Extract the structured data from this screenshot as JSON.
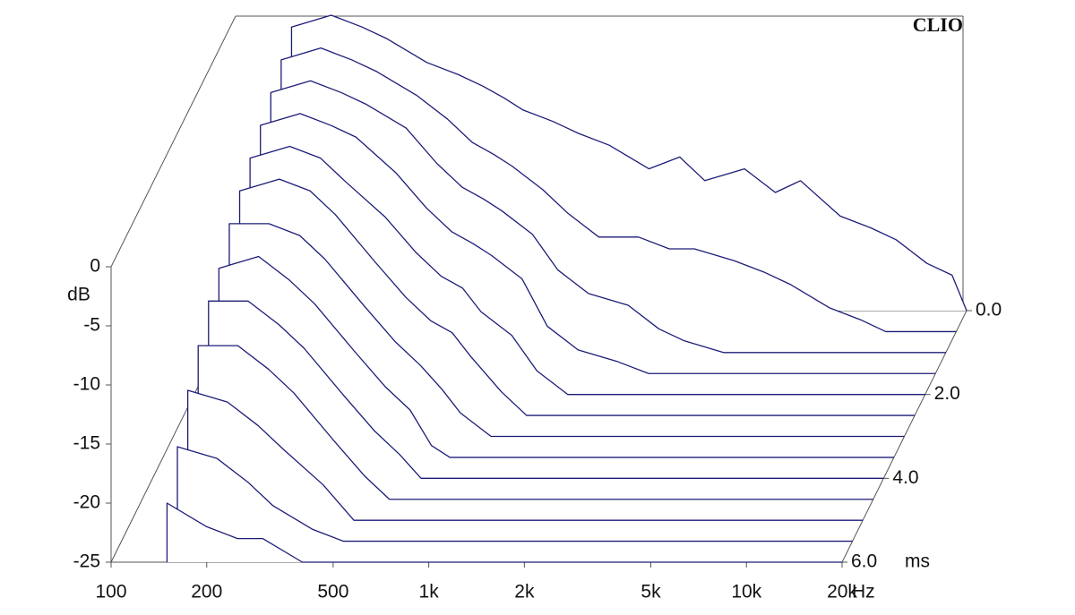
{
  "chart_data": {
    "type": "waterfall",
    "brand": "CLIO",
    "y_label": "dB",
    "x_unit": "Hz",
    "z_unit": "ms",
    "color": "#1c1c78",
    "x": [
      150,
      200,
      250,
      300,
      400,
      500,
      600,
      700,
      800,
      1000,
      1200,
      1500,
      2000,
      2500,
      3000,
      4000,
      5000,
      6000,
      8000,
      10000,
      12000,
      15000,
      18000,
      20000
    ],
    "xlim": [
      100,
      20000
    ],
    "log_x": true,
    "xticks": [
      100,
      200,
      500,
      {
        "value": 1000,
        "label": "1k"
      },
      {
        "value": 2000,
        "label": "2k"
      },
      {
        "value": 5000,
        "label": "5k"
      },
      {
        "value": 10000,
        "label": "10k"
      },
      {
        "value": 20000,
        "label": "20k"
      }
    ],
    "ylim": [
      -25,
      0
    ],
    "yticks": [
      0,
      -5,
      -10,
      -15,
      -20,
      -25
    ],
    "zlim": [
      0,
      6
    ],
    "zticks": [
      {
        "value": 0,
        "label": "0.0"
      },
      {
        "value": 2,
        "label": "2.0"
      },
      {
        "value": 4,
        "label": "4.0"
      },
      {
        "value": 6,
        "label": "6.0"
      }
    ],
    "slices": [
      {
        "t": 0,
        "values": [
          -1,
          0,
          -1,
          -2,
          -4,
          -5,
          -6,
          -7,
          -8,
          -9,
          -10,
          -11,
          -13,
          -12,
          -14,
          -13,
          -15,
          -14,
          -17,
          -18,
          -19,
          -21,
          -22,
          -25
        ]
      },
      {
        "t": 0.5,
        "values": [
          -2,
          -1,
          -2,
          -3,
          -5,
          -7,
          -9,
          -10,
          -11,
          -13,
          -15,
          -17,
          -17,
          -18,
          -18,
          -19,
          -20,
          -21,
          -23,
          -24,
          -25,
          -25,
          -25,
          -25
        ]
      },
      {
        "t": 1,
        "values": [
          -3,
          -2,
          -3,
          -4,
          -6,
          -9,
          -11,
          -12,
          -13,
          -15,
          -18,
          -20,
          -21,
          -23,
          -24,
          -25,
          -25,
          -25,
          -25,
          -25,
          -25,
          -25,
          -25,
          -25
        ]
      },
      {
        "t": 1.5,
        "values": [
          -4,
          -3,
          -4,
          -5,
          -8,
          -11,
          -13,
          -14,
          -15,
          -17,
          -21,
          -23,
          -24,
          -25,
          -25,
          -25,
          -25,
          -25,
          -25,
          -25,
          -25,
          -25,
          -25,
          -25
        ]
      },
      {
        "t": 2,
        "values": [
          -5,
          -4,
          -5,
          -7,
          -10,
          -13,
          -15,
          -16,
          -18,
          -20,
          -23,
          -25,
          -25,
          -25,
          -25,
          -25,
          -25,
          -25,
          -25,
          -25,
          -25,
          -25,
          -25,
          -25
        ]
      },
      {
        "t": 2.5,
        "values": [
          -6,
          -5,
          -6,
          -8,
          -12,
          -15,
          -17,
          -18,
          -20,
          -23,
          -25,
          -25,
          -25,
          -25,
          -25,
          -25,
          -25,
          -25,
          -25,
          -25,
          -25,
          -25,
          -25,
          -25
        ]
      },
      {
        "t": 3,
        "values": [
          -7,
          -7,
          -8,
          -10,
          -14,
          -17,
          -19,
          -21,
          -23,
          -25,
          -25,
          -25,
          -25,
          -25,
          -25,
          -25,
          -25,
          -25,
          -25,
          -25,
          -25,
          -25,
          -25,
          -25
        ]
      },
      {
        "t": 3.5,
        "values": [
          -9,
          -8,
          -10,
          -12,
          -16,
          -19,
          -21,
          -24,
          -25,
          -25,
          -25,
          -25,
          -25,
          -25,
          -25,
          -25,
          -25,
          -25,
          -25,
          -25,
          -25,
          -25,
          -25,
          -25
        ]
      },
      {
        "t": 4,
        "values": [
          -10,
          -10,
          -12,
          -14,
          -18,
          -21,
          -23,
          -25,
          -25,
          -25,
          -25,
          -25,
          -25,
          -25,
          -25,
          -25,
          -25,
          -25,
          -25,
          -25,
          -25,
          -25,
          -25,
          -25
        ]
      },
      {
        "t": 4.5,
        "values": [
          -12,
          -12,
          -14,
          -16,
          -20,
          -23,
          -25,
          -25,
          -25,
          -25,
          -25,
          -25,
          -25,
          -25,
          -25,
          -25,
          -25,
          -25,
          -25,
          -25,
          -25,
          -25,
          -25,
          -25
        ]
      },
      {
        "t": 5,
        "values": [
          -14,
          -15,
          -17,
          -19,
          -22,
          -25,
          -25,
          -25,
          -25,
          -25,
          -25,
          -25,
          -25,
          -25,
          -25,
          -25,
          -25,
          -25,
          -25,
          -25,
          -25,
          -25,
          -25,
          -25
        ]
      },
      {
        "t": 5.5,
        "values": [
          -17,
          -18,
          -20,
          -22,
          -24,
          -25,
          -25,
          -25,
          -25,
          -25,
          -25,
          -25,
          -25,
          -25,
          -25,
          -25,
          -25,
          -25,
          -25,
          -25,
          -25,
          -25,
          -25,
          -25
        ]
      },
      {
        "t": 6,
        "values": [
          -20,
          -22,
          -23,
          -23,
          -25,
          -25,
          -25,
          -25,
          -25,
          -25,
          -25,
          -25,
          -25,
          -25,
          -25,
          -25,
          -25,
          -25,
          -25,
          -25,
          -25,
          -25,
          -25,
          -25
        ]
      }
    ]
  }
}
